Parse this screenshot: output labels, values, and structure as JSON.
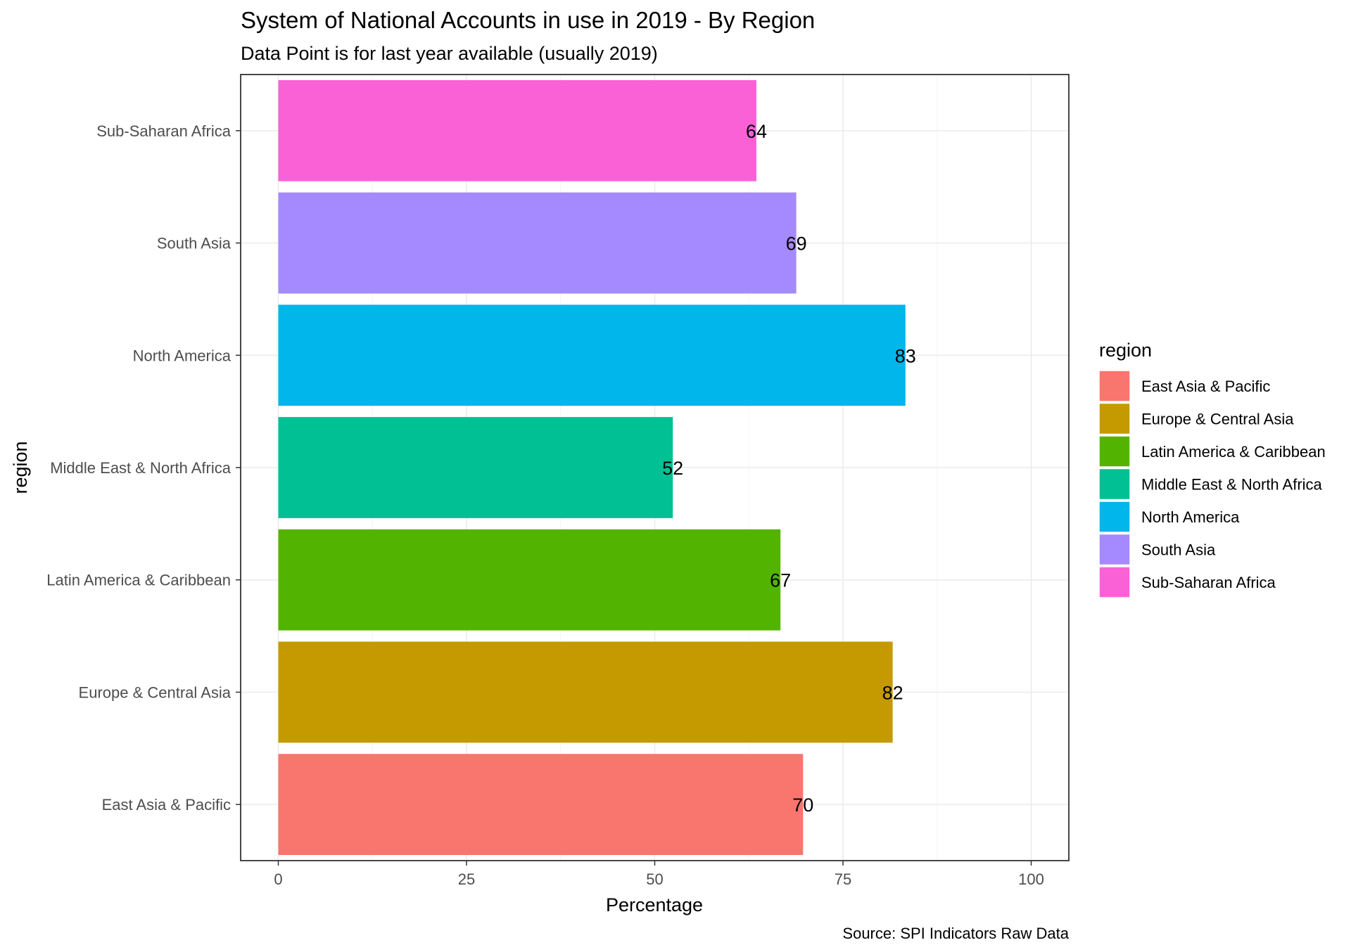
{
  "chart_data": {
    "type": "bar",
    "orientation": "horizontal",
    "title": "System of National Accounts in use in 2019 - By Region",
    "subtitle": "Data Point is for last year available (usually 2019)",
    "xlabel": "Percentage",
    "ylabel": "region",
    "xlim": [
      -5,
      105
    ],
    "xticks": [
      0,
      25,
      50,
      75,
      100
    ],
    "xtick_labels": [
      "0",
      "25",
      "50",
      "75",
      "100"
    ],
    "grid": true,
    "caption": "Source: SPI Indicators Raw Data",
    "legend": {
      "title": "region",
      "position": "right",
      "entries": [
        "East Asia & Pacific",
        "Europe & Central Asia",
        "Latin America & Caribbean",
        "Middle East & North Africa",
        "North America",
        "South Asia",
        "Sub-Saharan Africa"
      ]
    },
    "categories": [
      "East Asia & Pacific",
      "Europe & Central Asia",
      "Latin America & Caribbean",
      "Middle East & North Africa",
      "North America",
      "South Asia",
      "Sub-Saharan Africa"
    ],
    "values": [
      69.7,
      81.6,
      66.7,
      52.4,
      83.3,
      68.8,
      63.5
    ],
    "value_labels": [
      "70",
      "82",
      "67",
      "52",
      "83",
      "69",
      "64"
    ],
    "colors": [
      "#F8766D",
      "#C49A00",
      "#53B400",
      "#00C094",
      "#00B6EB",
      "#A58AFF",
      "#FB61D7"
    ]
  }
}
